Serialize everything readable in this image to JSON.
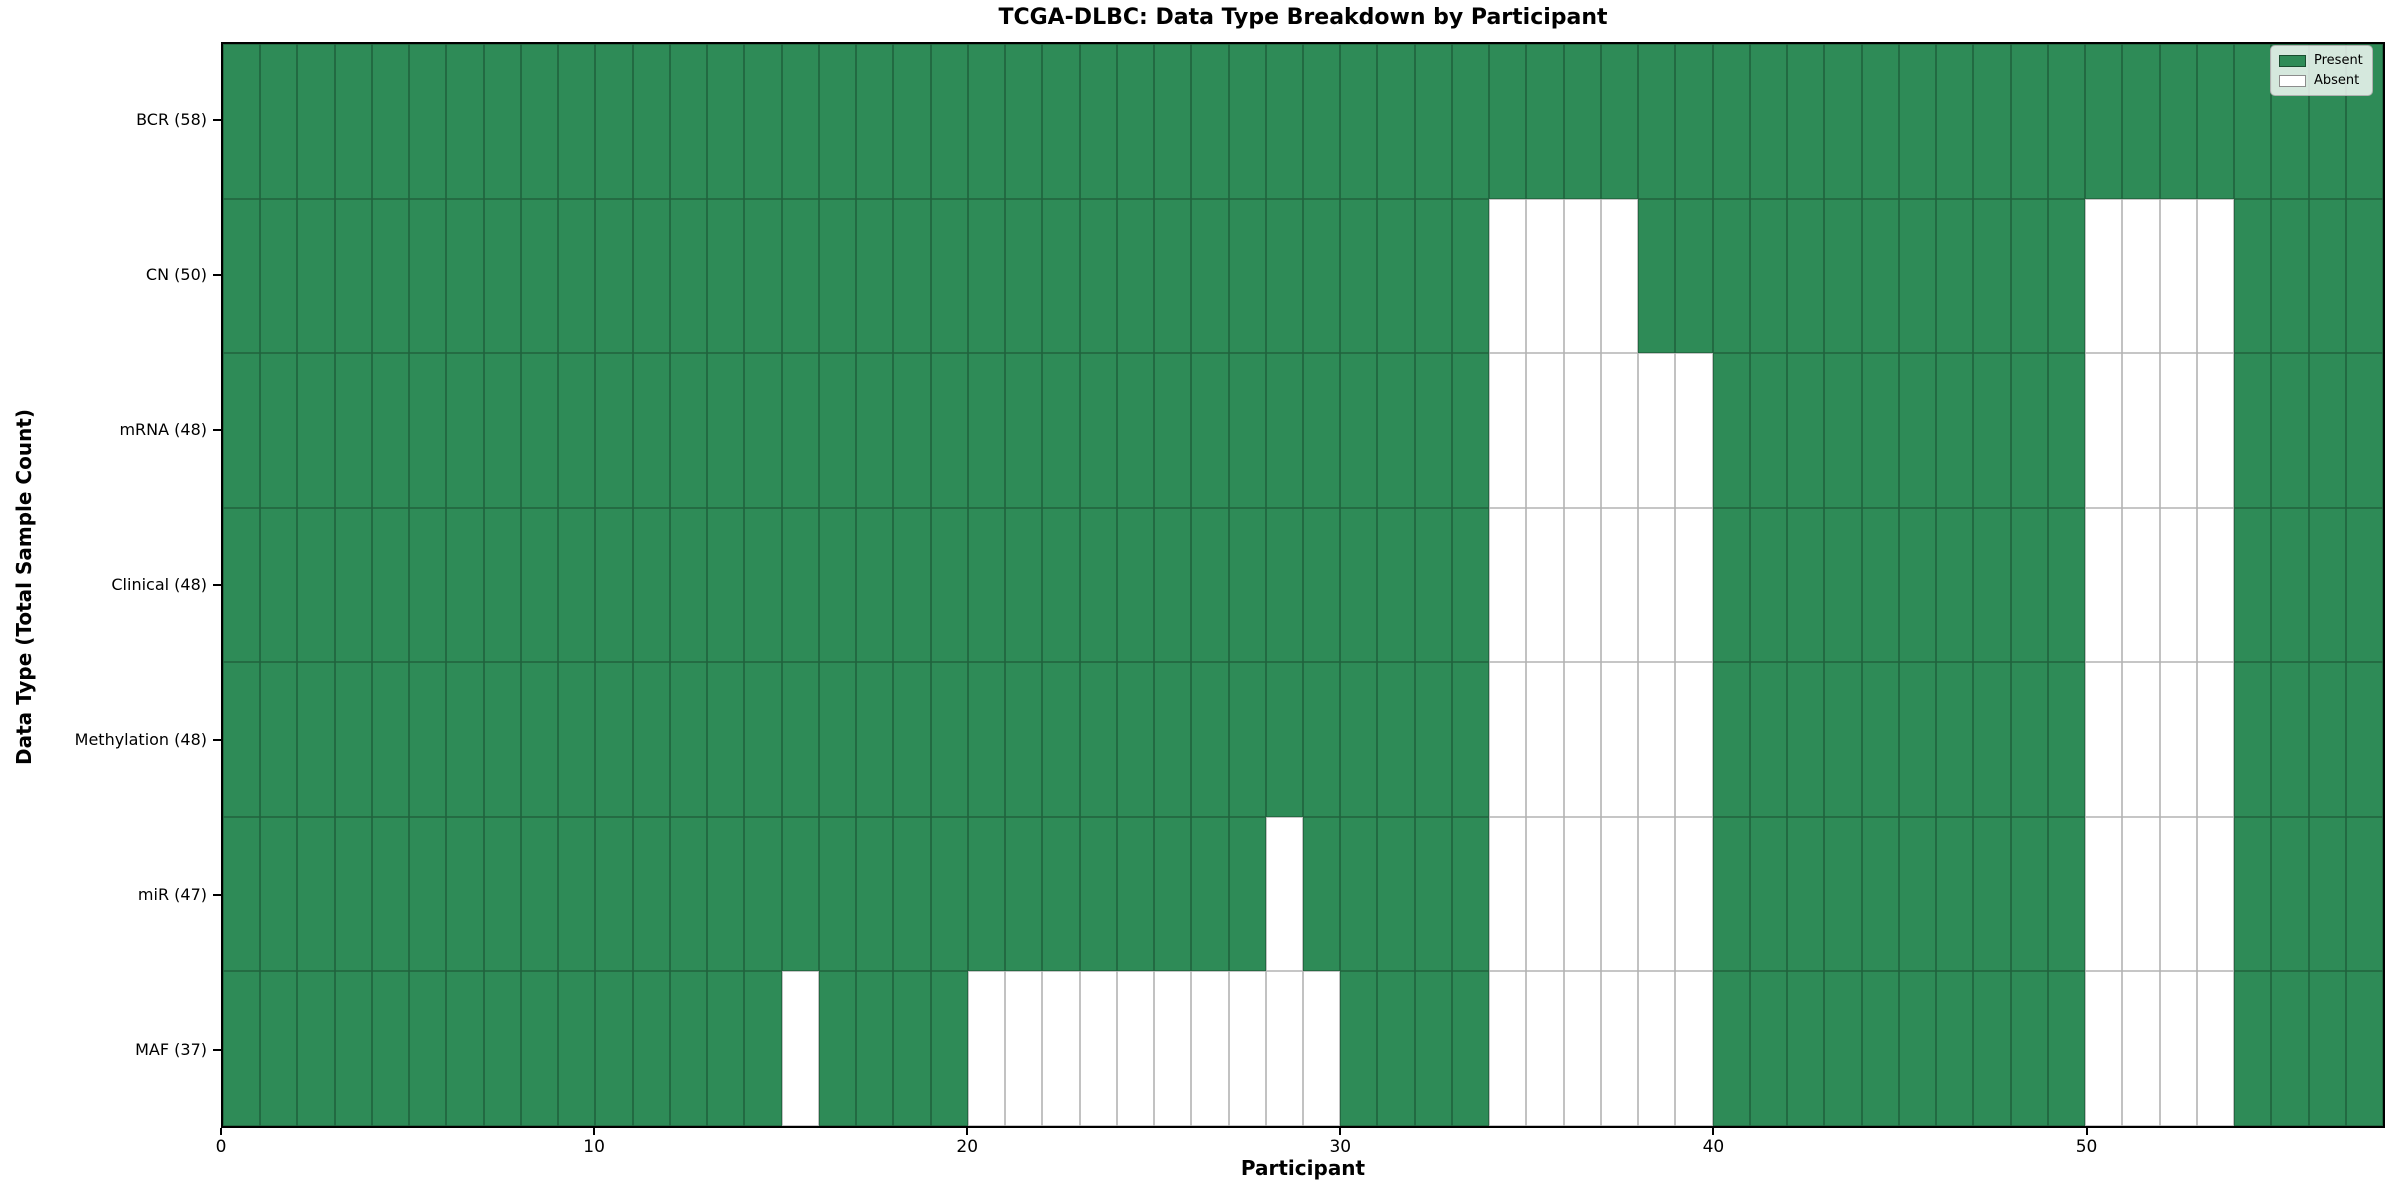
{
  "chart_data": {
    "type": "heatmap",
    "title": "TCGA-DLBC: Data Type Breakdown by Participant",
    "xlabel": "Participant",
    "ylabel": "Data Type (Total Sample Count)",
    "n_participants": 58,
    "x_ticks": [
      0,
      10,
      20,
      30,
      40,
      50
    ],
    "xlim": [
      0,
      58
    ],
    "grid": "cell-outlines",
    "legend_position": "upper right",
    "colors": {
      "present": "#2e8b57",
      "absent": "#ffffff",
      "cell_edge": "rgba(0,0,0,0.30)"
    },
    "rows": [
      {
        "label": "BCR (58)",
        "data_type": "BCR",
        "total": 58,
        "absent_participants": []
      },
      {
        "label": "CN (50)",
        "data_type": "CN",
        "total": 50,
        "absent_participants": [
          34,
          35,
          36,
          37,
          50,
          51,
          52,
          53
        ]
      },
      {
        "label": "mRNA (48)",
        "data_type": "mRNA",
        "total": 48,
        "absent_participants": [
          34,
          35,
          36,
          37,
          38,
          39,
          50,
          51,
          52,
          53
        ]
      },
      {
        "label": "Clinical (48)",
        "data_type": "Clinical",
        "total": 48,
        "absent_participants": [
          34,
          35,
          36,
          37,
          38,
          39,
          50,
          51,
          52,
          53
        ]
      },
      {
        "label": "Methylation (48)",
        "data_type": "Methylation",
        "total": 48,
        "absent_participants": [
          34,
          35,
          36,
          37,
          38,
          39,
          50,
          51,
          52,
          53
        ]
      },
      {
        "label": "miR (47)",
        "data_type": "miR",
        "total": 47,
        "absent_participants": [
          28,
          34,
          35,
          36,
          37,
          38,
          39,
          50,
          51,
          52,
          53
        ]
      },
      {
        "label": "MAF (37)",
        "data_type": "MAF",
        "total": 37,
        "absent_participants": [
          15,
          20,
          21,
          22,
          23,
          24,
          25,
          26,
          27,
          28,
          29,
          34,
          35,
          36,
          37,
          38,
          39,
          50,
          51,
          52,
          53
        ]
      }
    ],
    "legend": [
      {
        "label": "Present",
        "color": "#2e8b57"
      },
      {
        "label": "Absent",
        "color": "#ffffff"
      }
    ]
  }
}
